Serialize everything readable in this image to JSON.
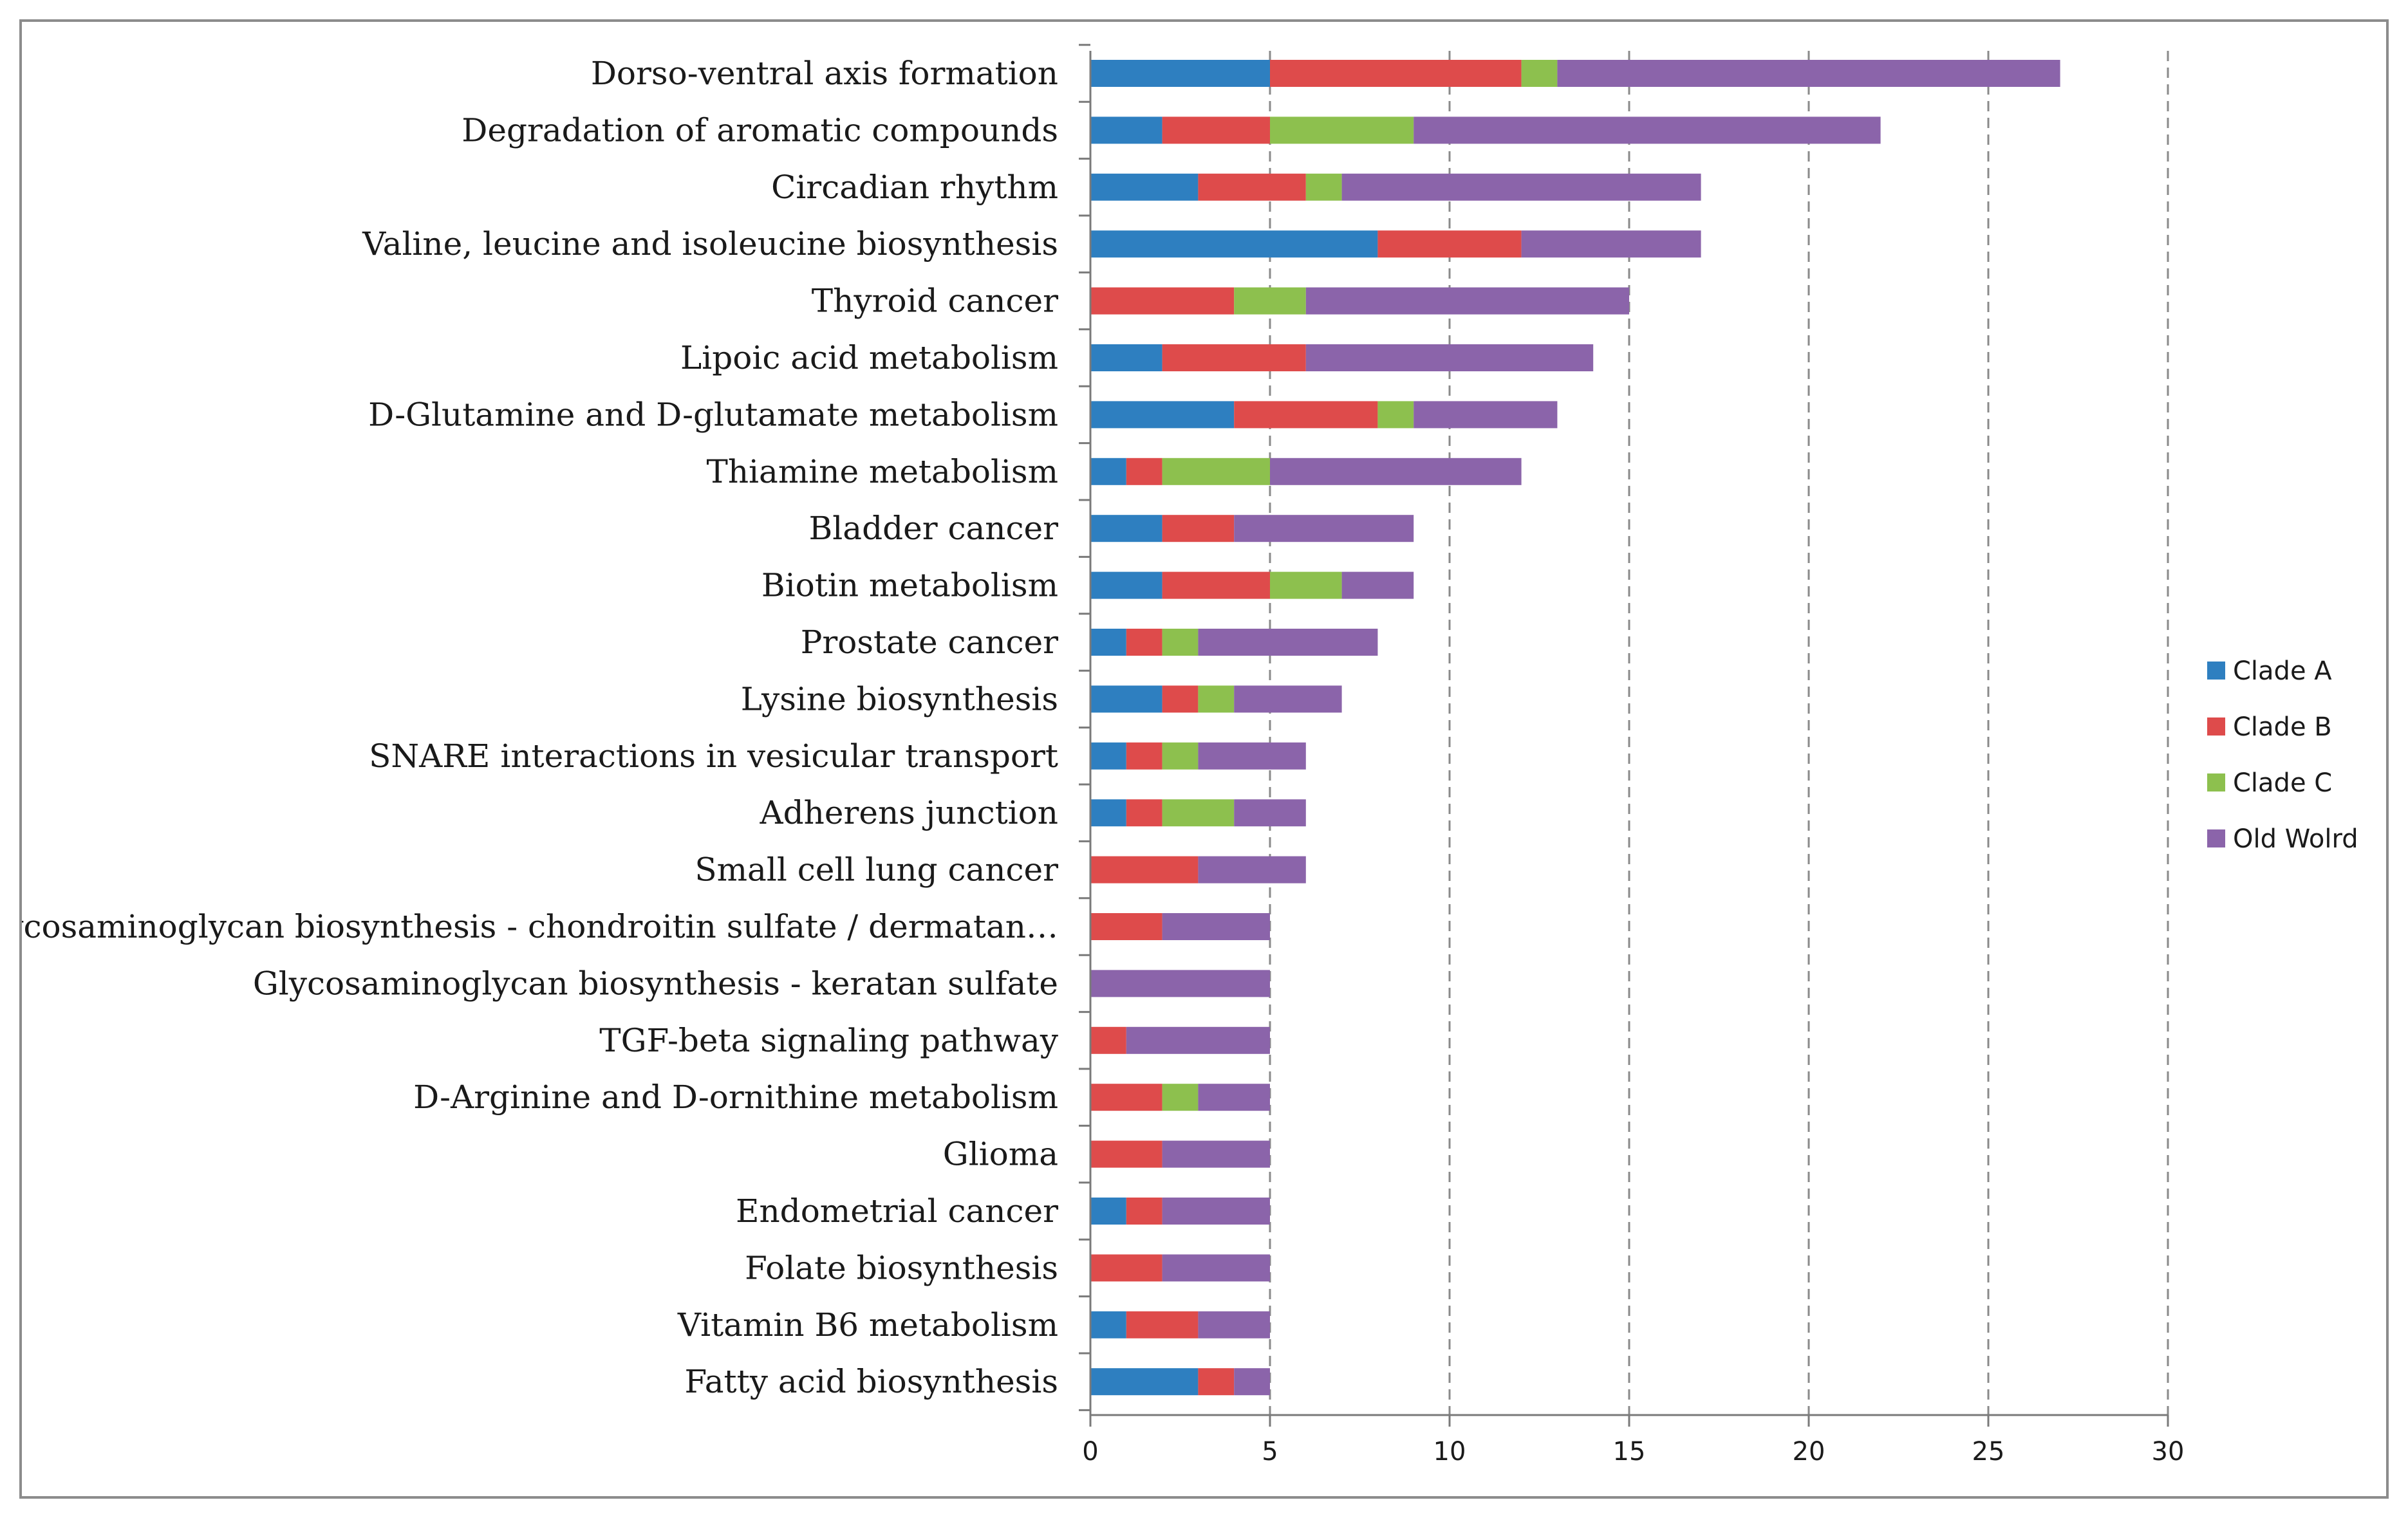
{
  "chart_data": {
    "type": "bar",
    "orientation": "horizontal",
    "stacked": true,
    "title": "",
    "xlabel": "",
    "ylabel": "",
    "xlim": [
      0,
      30
    ],
    "x_ticks": [
      0,
      5,
      10,
      15,
      20,
      25,
      30
    ],
    "grid": "vertical dashed",
    "legend_position": "right",
    "categories": [
      "Dorso-ventral axis formation",
      "Degradation of aromatic compounds",
      "Circadian rhythm",
      "Valine, leucine and isoleucine biosynthesis",
      "Thyroid cancer",
      "Lipoic acid metabolism",
      "D-Glutamine and D-glutamate metabolism",
      "Thiamine metabolism",
      "Bladder cancer",
      "Biotin metabolism",
      "Prostate cancer",
      "Lysine biosynthesis",
      "SNARE interactions in vesicular transport",
      "Adherens junction",
      "Small cell lung cancer",
      "Glycosaminoglycan biosynthesis - chondroitin sulfate / dermatan…",
      "Glycosaminoglycan biosynthesis - keratan sulfate",
      "TGF-beta signaling pathway",
      "D-Arginine and D-ornithine metabolism",
      "Glioma",
      "Endometrial cancer",
      "Folate biosynthesis",
      "Vitamin B6 metabolism",
      "Fatty acid biosynthesis"
    ],
    "series": [
      {
        "name": "Clade A",
        "color": "#2e7fc0",
        "values": [
          5,
          2,
          3,
          8,
          0,
          2,
          4,
          1,
          2,
          2,
          1,
          2,
          1,
          1,
          0,
          0,
          0,
          0,
          0,
          0,
          1,
          0,
          1,
          3
        ]
      },
      {
        "name": "Clade B",
        "color": "#de4b4b",
        "values": [
          7,
          3,
          3,
          4,
          4,
          4,
          4,
          1,
          2,
          3,
          1,
          1,
          1,
          1,
          3,
          2,
          0,
          1,
          2,
          2,
          1,
          2,
          2,
          1
        ]
      },
      {
        "name": "Clade C",
        "color": "#8dc04e",
        "values": [
          1,
          4,
          1,
          0,
          2,
          0,
          1,
          3,
          0,
          2,
          1,
          1,
          1,
          2,
          0,
          0,
          0,
          0,
          1,
          0,
          0,
          0,
          0,
          0
        ]
      },
      {
        "name": "Old Wolrd",
        "color": "#8b64aa",
        "values": [
          14,
          13,
          10,
          5,
          9,
          8,
          4,
          7,
          5,
          2,
          5,
          3,
          3,
          2,
          3,
          3,
          5,
          4,
          2,
          3,
          3,
          3,
          2,
          1
        ]
      }
    ]
  }
}
